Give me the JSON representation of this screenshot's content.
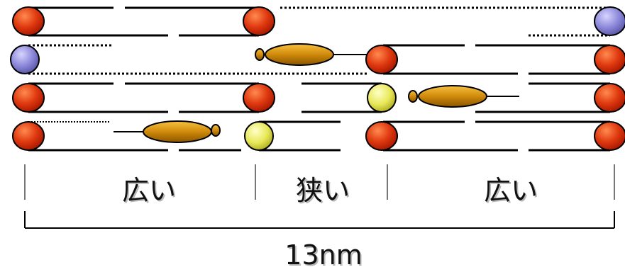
{
  "labels": {
    "left": "広い",
    "middle": "狭い",
    "right": "広い",
    "total": "13nm"
  },
  "colors": {
    "red_sphere": "#e23a10",
    "blue_sphere": "#8a86d8",
    "yellow_sphere": "#e8e85a",
    "gold_ellipse": "#d08a0a",
    "line": "#000000"
  }
}
